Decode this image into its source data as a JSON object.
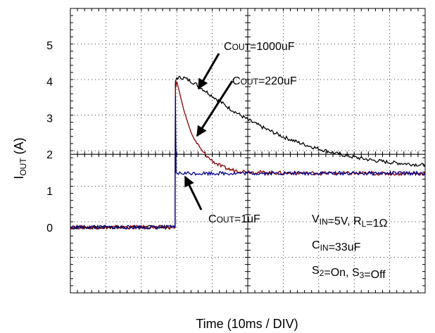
{
  "chart_data": {
    "type": "line",
    "title": "",
    "xlabel": "Time  (10ms / DIV)",
    "ylabel": {
      "main": "I",
      "sub": "OUT",
      "suffix": " (A)"
    },
    "y_ticks": [
      "0",
      "1",
      "2",
      "3",
      "4",
      "5"
    ],
    "ylim": [
      -1.8,
      6.0
    ],
    "xlim": [
      0,
      100
    ],
    "grid": true,
    "series": [
      {
        "name": "COUT=1000uF",
        "color": "#000000",
        "x": [
          0,
          29.5,
          29.6,
          30,
          32,
          35,
          40,
          45,
          50,
          55,
          60,
          65,
          70,
          75,
          80,
          85,
          90,
          95,
          100
        ],
        "y": [
          0,
          0,
          4.0,
          4.1,
          4.1,
          3.95,
          3.6,
          3.25,
          2.95,
          2.7,
          2.48,
          2.3,
          2.15,
          2.02,
          1.92,
          1.84,
          1.78,
          1.74,
          1.7
        ]
      },
      {
        "name": "COUT=220uF",
        "color": "#8b0000",
        "x": [
          0,
          29.5,
          29.6,
          30,
          31,
          32,
          33,
          34,
          35,
          37,
          39,
          41,
          43,
          45,
          50,
          55,
          60,
          70,
          80,
          90,
          100
        ],
        "y": [
          0,
          0,
          3.8,
          4.0,
          3.6,
          3.2,
          2.9,
          2.6,
          2.4,
          2.1,
          1.9,
          1.75,
          1.65,
          1.58,
          1.52,
          1.5,
          1.49,
          1.48,
          1.48,
          1.47,
          1.47
        ]
      },
      {
        "name": "COUT=1uF",
        "color": "#00008b",
        "x": [
          0,
          29.5,
          29.6,
          29.8,
          30.2,
          100
        ],
        "y": [
          0,
          0,
          3.6,
          1.5,
          1.48,
          1.48
        ]
      }
    ],
    "annotations": [
      {
        "type": "cout",
        "main": "C",
        "sub": "OUT",
        "rest": "=1000uF"
      },
      {
        "type": "cout",
        "main": "C",
        "sub": "OUT",
        "rest": "=220uF"
      },
      {
        "type": "cout",
        "main": "C",
        "sub": "OUT",
        "rest": "=1uF"
      },
      {
        "type": "cond",
        "parts": [
          {
            "t": "V",
            "sub": false
          },
          {
            "t": "IN",
            "sub": true
          },
          {
            "t": "=5V, R",
            "sub": false
          },
          {
            "t": "L",
            "sub": true
          },
          {
            "t": "=1Ω",
            "sub": false
          }
        ]
      },
      {
        "type": "cond",
        "parts": [
          {
            "t": "C",
            "sub": false
          },
          {
            "t": "IN",
            "sub": true
          },
          {
            "t": "=33uF",
            "sub": false
          }
        ]
      },
      {
        "type": "cond",
        "parts": [
          {
            "t": "S",
            "sub": false
          },
          {
            "t": "2",
            "sub": true
          },
          {
            "t": "=On, S",
            "sub": false
          },
          {
            "t": "3",
            "sub": true
          },
          {
            "t": "=Off",
            "sub": false
          }
        ]
      }
    ]
  }
}
